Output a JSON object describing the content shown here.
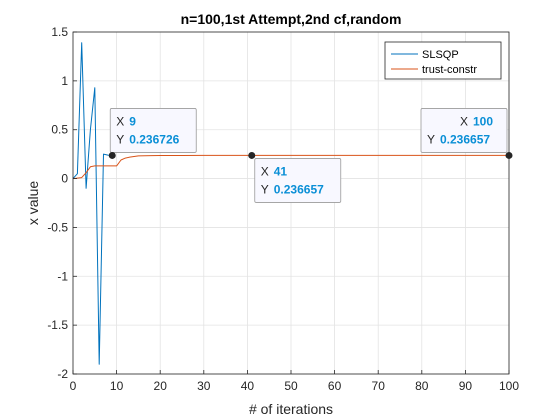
{
  "chart_data": {
    "type": "line",
    "title": "n=100,1st Attempt,2nd cf,random",
    "xlabel": "# of iterations",
    "ylabel": "x value",
    "xlim": [
      0,
      100
    ],
    "ylim": [
      -2,
      1.5
    ],
    "xticks": [
      0,
      10,
      20,
      30,
      40,
      50,
      60,
      70,
      80,
      90,
      100
    ],
    "yticks": [
      -2,
      -1.5,
      -1,
      -0.5,
      0,
      0.5,
      1,
      1.5
    ],
    "xtick_labels": [
      "0",
      "10",
      "20",
      "30",
      "40",
      "50",
      "60",
      "70",
      "80",
      "90",
      "100"
    ],
    "ytick_labels": [
      "-2",
      "-1.5",
      "-1",
      "-0.5",
      "0",
      "0.5",
      "1",
      "1.5"
    ],
    "grid": true,
    "legend_position": "top-right",
    "series": [
      {
        "name": "SLSQP",
        "color": "#0072BD",
        "x": [
          0,
          1,
          2,
          3,
          4,
          5,
          6,
          7,
          8,
          9
        ],
        "y": [
          0,
          0.05,
          1.39,
          -0.1,
          0.5,
          0.93,
          -1.9,
          0.25,
          0.24,
          0.236726
        ]
      },
      {
        "name": "trust-constr",
        "color": "#D95319",
        "x": [
          0,
          2,
          3,
          4,
          5,
          6,
          7,
          8,
          9,
          10,
          11,
          12,
          13,
          15,
          18,
          20,
          25,
          30,
          41,
          60,
          80,
          100
        ],
        "y": [
          0,
          0.01,
          0.06,
          0.12,
          0.13,
          0.13,
          0.13,
          0.13,
          0.13,
          0.13,
          0.19,
          0.21,
          0.22,
          0.232,
          0.235,
          0.236,
          0.2366,
          0.23666,
          0.236657,
          0.236657,
          0.236657,
          0.236657
        ]
      }
    ],
    "datatips": [
      {
        "x_label": "X",
        "y_label": "Y",
        "x": "9",
        "y": "0.236726",
        "point": [
          9,
          0.236726
        ]
      },
      {
        "x_label": "X",
        "y_label": "Y",
        "x": "41",
        "y": "0.236657",
        "point": [
          41,
          0.236657
        ]
      },
      {
        "x_label": "X",
        "y_label": "Y",
        "x": "100",
        "y": "0.236657",
        "point": [
          100,
          0.236657
        ]
      }
    ]
  }
}
